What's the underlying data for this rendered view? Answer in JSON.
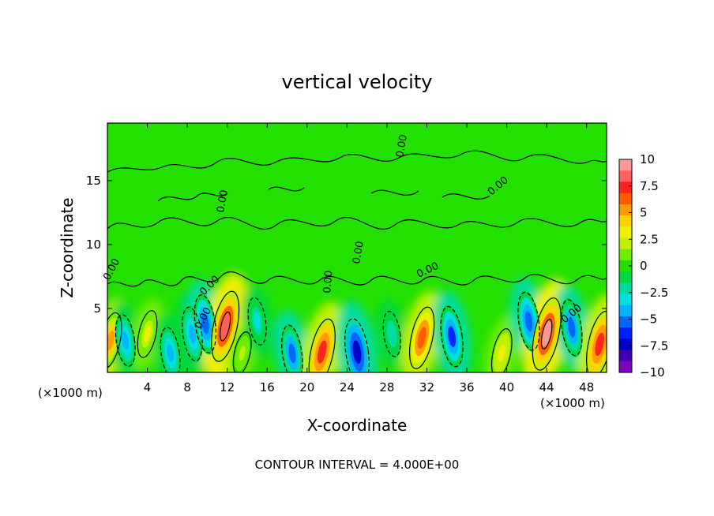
{
  "chart_data": {
    "type": "heatmap",
    "title": "vertical velocity",
    "xlabel": "X-coordinate",
    "ylabel": "Z-coordinate",
    "x_unit_label": "(×1000 m)",
    "z_unit_label": "(×1000 m)",
    "xlim": [
      0,
      50
    ],
    "ylim": [
      0,
      19.5
    ],
    "x_ticks": [
      4,
      8,
      12,
      16,
      20,
      24,
      28,
      32,
      36,
      40,
      44,
      48
    ],
    "y_ticks": [
      5,
      10,
      15
    ],
    "colorbar": {
      "ticks": [
        10,
        7.5,
        5,
        2.5,
        0,
        -2.5,
        -5,
        -7.5,
        -10
      ],
      "tick_labels": [
        "10",
        "7.5",
        "5",
        "2.5",
        "0",
        "−2.5",
        "−5",
        "−7.5",
        "−10"
      ],
      "range": [
        -10,
        10
      ],
      "colors_top_to_bottom": [
        "#ff9999",
        "#ff6060",
        "#ff2020",
        "#ff5a00",
        "#ff9a00",
        "#ffd200",
        "#f0f000",
        "#c0f000",
        "#70ee00",
        "#20e000",
        "#00d840",
        "#00dca0",
        "#00e0e0",
        "#00b4ff",
        "#0064ff",
        "#0020ff",
        "#0000c8",
        "#4000b0",
        "#8000c0"
      ]
    },
    "grid": false,
    "contour_interval_text": "CONTOUR INTERVAL = 4.000E+00",
    "contour_label": "0.00",
    "features": [
      {
        "x": 0.3,
        "z": 2.5,
        "w": 5.0,
        "kind": "updraft"
      },
      {
        "x": 1.8,
        "z": 2.5,
        "w": -4.0,
        "kind": "downdraft"
      },
      {
        "x": 4.0,
        "z": 3.0,
        "w": 3.0,
        "kind": "updraft"
      },
      {
        "x": 6.3,
        "z": 1.5,
        "w": -4.0,
        "kind": "downdraft"
      },
      {
        "x": 8.5,
        "z": 3.0,
        "w": -4.5,
        "kind": "downdraft"
      },
      {
        "x": 9.8,
        "z": 3.8,
        "w": -5.5,
        "kind": "downdraft"
      },
      {
        "x": 11.8,
        "z": 3.6,
        "w": 8.5,
        "kind": "updraft"
      },
      {
        "x": 13.5,
        "z": 1.5,
        "w": 2.0,
        "kind": "updraft"
      },
      {
        "x": 15.0,
        "z": 4.0,
        "w": -3.0,
        "kind": "downdraft"
      },
      {
        "x": 18.5,
        "z": 1.5,
        "w": -5.0,
        "kind": "downdraft"
      },
      {
        "x": 21.5,
        "z": 1.6,
        "w": 7.5,
        "kind": "updraft"
      },
      {
        "x": 25.0,
        "z": 1.6,
        "w": -7.5,
        "kind": "downdraft"
      },
      {
        "x": 28.5,
        "z": 3.0,
        "w": -2.5,
        "kind": "downdraft"
      },
      {
        "x": 31.5,
        "z": 2.7,
        "w": 6.5,
        "kind": "updraft"
      },
      {
        "x": 34.5,
        "z": 2.8,
        "w": -6.0,
        "kind": "downdraft"
      },
      {
        "x": 39.5,
        "z": 1.5,
        "w": 3.5,
        "kind": "updraft"
      },
      {
        "x": 42.2,
        "z": 4.0,
        "w": -5.5,
        "kind": "downdraft"
      },
      {
        "x": 44.0,
        "z": 3.0,
        "w": 9.0,
        "kind": "updraft"
      },
      {
        "x": 46.5,
        "z": 3.5,
        "w": -5.0,
        "kind": "downdraft"
      },
      {
        "x": 49.3,
        "z": 2.2,
        "w": 7.5,
        "kind": "updraft"
      }
    ]
  }
}
